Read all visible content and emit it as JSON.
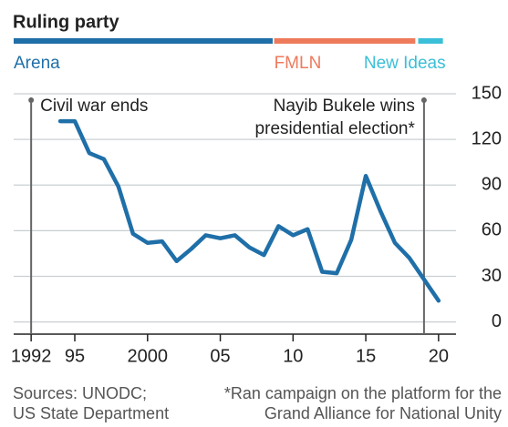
{
  "chart_data": {
    "type": "line",
    "ruling_party": {
      "title": "Ruling party",
      "parties": [
        {
          "name": "Arena",
          "color": "#1f6fa8",
          "start": 1990.8,
          "end": 2008.6
        },
        {
          "name": "FMLN",
          "color": "#ee7a5c",
          "start": 2008.7,
          "end": 2018.4
        },
        {
          "name": "New Ideas",
          "color": "#3bbfd8",
          "start": 2018.6,
          "end": 2020.3
        }
      ]
    },
    "x": [
      1994,
      1995,
      1996,
      1997,
      1998,
      1999,
      2000,
      2001,
      2002,
      2003,
      2004,
      2005,
      2006,
      2007,
      2008,
      2009,
      2010,
      2011,
      2012,
      2013,
      2014,
      2015,
      2016,
      2017,
      2018,
      2019,
      2020
    ],
    "values": [
      132,
      132,
      111,
      107,
      89,
      58,
      52,
      53,
      40,
      48,
      57,
      55,
      57,
      49,
      44,
      63,
      57,
      61,
      33,
      32,
      54,
      96,
      73,
      52,
      42,
      28,
      14
    ],
    "color": "#1f6fa8",
    "xlim": [
      1990.8,
      2021.2
    ],
    "xticks": [
      {
        "value": 1992,
        "label": "1992"
      },
      {
        "value": 1995,
        "label": "95"
      },
      2000,
      {
        "value": 2005,
        "label": "05"
      },
      {
        "value": 2010,
        "label": "10"
      },
      {
        "value": 2015,
        "label": "15"
      },
      {
        "value": 2020,
        "label": "20"
      }
    ],
    "ylim": [
      -8,
      150
    ],
    "yticks": [
      0,
      30,
      60,
      90,
      120,
      150
    ],
    "grid": true,
    "annotations": [
      {
        "x": 1992,
        "text": [
          "Civil war ends"
        ]
      },
      {
        "x": 2019,
        "text": [
          "Nayib Bukele wins",
          "presidential election*"
        ]
      }
    ],
    "source": [
      "Sources: UNODC;",
      "US State Department"
    ],
    "footnote": [
      "*Ran campaign on the platform for the",
      "Grand Alliance for National Unity"
    ]
  }
}
